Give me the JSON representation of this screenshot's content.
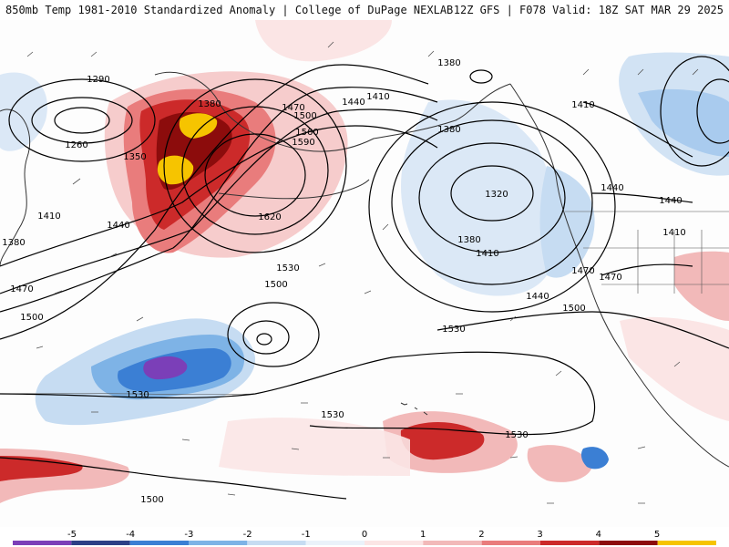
{
  "title_left": "850mb Temp 1981-2010 Standardized Anomaly | College of DuPage NEXLAB",
  "title_right": "12Z GFS | F078 Valid: 18Z SAT MAR 29 2025",
  "height_contours": {
    "labels": [
      {
        "id": "c1290",
        "text": "1290"
      },
      {
        "id": "c1260",
        "text": "1260"
      },
      {
        "id": "c1350",
        "text": "1350"
      },
      {
        "id": "c1380a",
        "text": "1380"
      },
      {
        "id": "c1380b",
        "text": "1380"
      },
      {
        "id": "c1380c",
        "text": "1380"
      },
      {
        "id": "c1380d",
        "text": "1380"
      },
      {
        "id": "c1380e",
        "text": "1380"
      },
      {
        "id": "c1410a",
        "text": "1410"
      },
      {
        "id": "c1410b",
        "text": "1410"
      },
      {
        "id": "c1410c",
        "text": "1410"
      },
      {
        "id": "c1410d",
        "text": "1410"
      },
      {
        "id": "c1410e",
        "text": "1410"
      },
      {
        "id": "c1440a",
        "text": "1440"
      },
      {
        "id": "c1440b",
        "text": "1440"
      },
      {
        "id": "c1440c",
        "text": "1440"
      },
      {
        "id": "c1440d",
        "text": "1440"
      },
      {
        "id": "c1440e",
        "text": "1440"
      },
      {
        "id": "c1470a",
        "text": "1470"
      },
      {
        "id": "c1470b",
        "text": "1470"
      },
      {
        "id": "c1470c",
        "text": "1470"
      },
      {
        "id": "c1470d",
        "text": "1470"
      },
      {
        "id": "c1500a",
        "text": "1500"
      },
      {
        "id": "c1500b",
        "text": "1500"
      },
      {
        "id": "c1500c",
        "text": "1500"
      },
      {
        "id": "c1500d",
        "text": "1500"
      },
      {
        "id": "c1500e",
        "text": "1500"
      },
      {
        "id": "c1530a",
        "text": "1530"
      },
      {
        "id": "c1530b",
        "text": "1530"
      },
      {
        "id": "c1530c",
        "text": "1530"
      },
      {
        "id": "c1530d",
        "text": "1530"
      },
      {
        "id": "c1530e",
        "text": "1530"
      },
      {
        "id": "c1560",
        "text": "1560"
      },
      {
        "id": "c1590",
        "text": "1590"
      },
      {
        "id": "c1620",
        "text": "1620"
      },
      {
        "id": "c1320",
        "text": "1320"
      }
    ]
  },
  "colorbar": {
    "ticks": [
      "-5",
      "-4",
      "-3",
      "-2",
      "-1",
      "0",
      "1",
      "2",
      "3",
      "4",
      "5"
    ],
    "colors": [
      "#7b3fb8",
      "#2c3f86",
      "#3b7fd4",
      "#7eb3e6",
      "#c6dcf2",
      "#eaf2fa",
      "#fbe5e5",
      "#f2b9b9",
      "#e97c7c",
      "#cc2a2a",
      "#8c0c0c",
      "#f6c400"
    ]
  }
}
